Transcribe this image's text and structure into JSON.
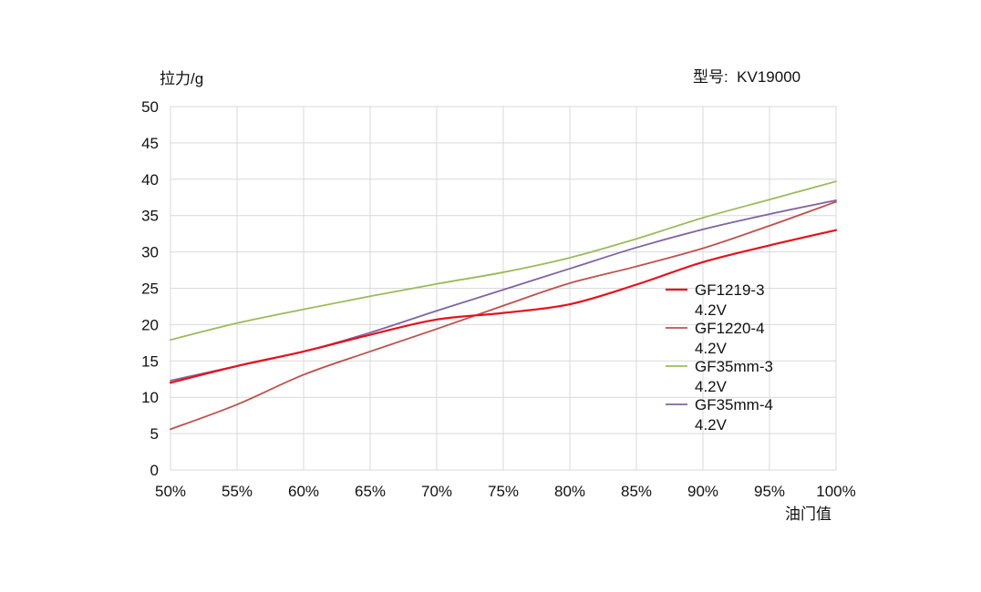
{
  "chart_data": {
    "type": "line",
    "ylabel": "拉力/g",
    "xlabel": "油门值",
    "model": "型号:  KV19000",
    "x": [
      50,
      55,
      60,
      65,
      70,
      75,
      80,
      85,
      90,
      95,
      100
    ],
    "x_tick_labels": [
      "50%",
      "55%",
      "60%",
      "65%",
      "70%",
      "75%",
      "80%",
      "85%",
      "90%",
      "95%",
      "100%"
    ],
    "xlim": [
      50,
      100
    ],
    "ylim": [
      0,
      50
    ],
    "y_ticks": [
      0,
      5,
      10,
      15,
      20,
      25,
      30,
      35,
      40,
      45,
      50
    ],
    "y_tick_labels": [
      "0",
      "5",
      "10",
      "15",
      "20",
      "25",
      "30",
      "35",
      "40",
      "45",
      "50"
    ],
    "grid": true,
    "legend_position": "right-middle",
    "series": [
      {
        "name": "GF1219-3 4.2V",
        "legend_lines": [
          "GF1219-3",
          "4.2V"
        ],
        "color": "#e8101b",
        "values": [
          12.0,
          14.3,
          16.3,
          18.6,
          20.7,
          21.6,
          22.8,
          25.5,
          28.6,
          30.9,
          33.0
        ]
      },
      {
        "name": "GF1220-4 4.2V",
        "legend_lines": [
          "GF1220-4",
          "4.2V"
        ],
        "color": "#c0504d",
        "values": [
          5.6,
          9.0,
          13.1,
          16.3,
          19.4,
          22.6,
          25.7,
          28.0,
          30.5,
          33.6,
          36.9
        ]
      },
      {
        "name": "GF35mm-3 4.2V",
        "legend_lines": [
          "GF35mm-3",
          "4.2V"
        ],
        "color": "#9bbb59",
        "values": [
          17.9,
          20.2,
          22.1,
          23.9,
          25.6,
          27.2,
          29.2,
          31.8,
          34.7,
          37.2,
          39.7
        ]
      },
      {
        "name": "GF35mm-4 4.2V",
        "legend_lines": [
          "GF35mm-4",
          "4.2V"
        ],
        "color": "#8064a2",
        "values": [
          12.3,
          14.3,
          16.3,
          18.9,
          21.9,
          24.8,
          27.7,
          30.6,
          33.1,
          35.2,
          37.1
        ]
      }
    ]
  }
}
